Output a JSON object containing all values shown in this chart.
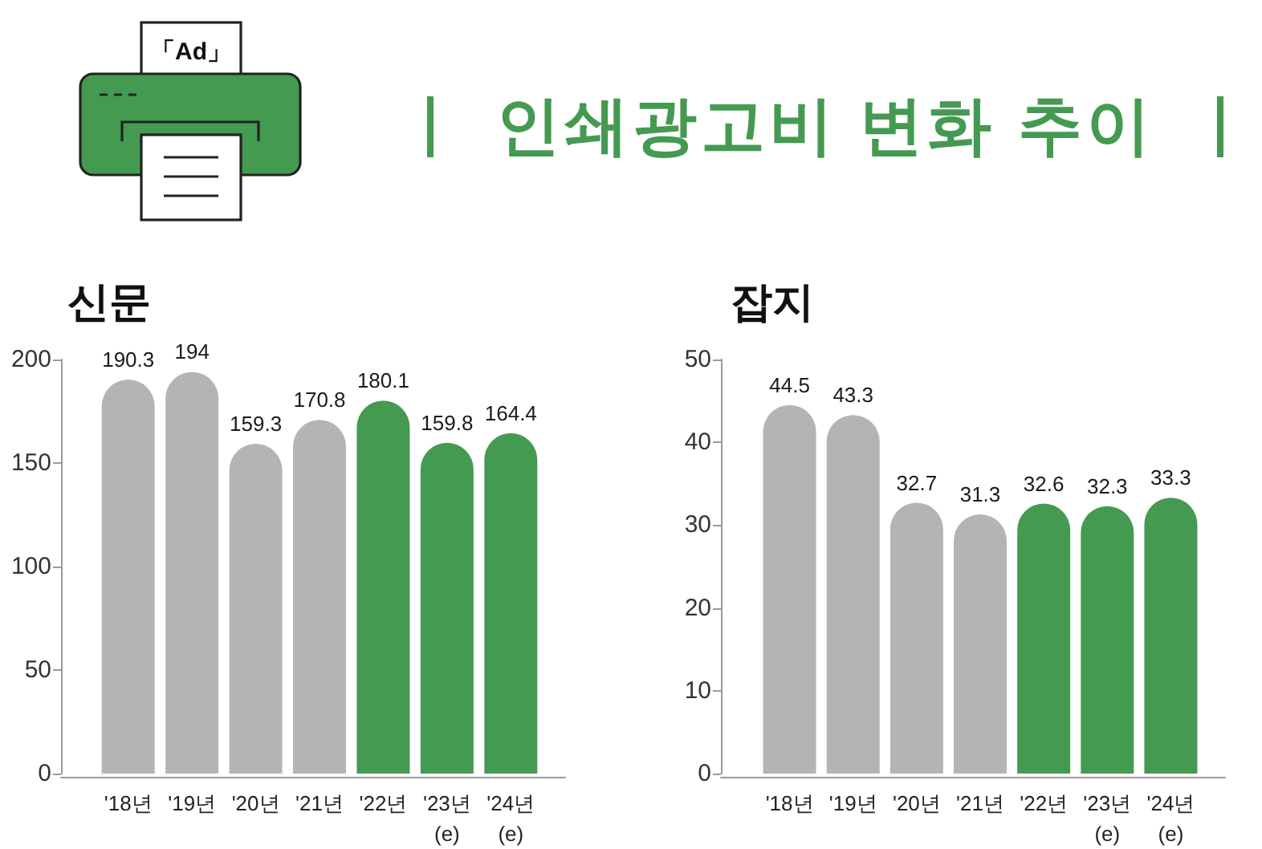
{
  "chart_data": [
    {
      "type": "bar",
      "subtitle": "신문",
      "annotations": [
        "「Ad」"
      ],
      "categories": [
        "'18년",
        "'19년",
        "'20년",
        "'21년",
        "'22년",
        "'23년\n(e)",
        "'24년\n(e)"
      ],
      "values": [
        190.3,
        194,
        159.3,
        170.8,
        180.1,
        159.8,
        164.4
      ],
      "colors": [
        "#b4b4b7",
        "#b4b4b7",
        "#b4b4b7",
        "#b4b4b7",
        "#459a51",
        "#459a51",
        "#459a51"
      ],
      "ylim": [
        0,
        200
      ],
      "yticks": [
        0,
        50,
        100,
        150,
        200
      ],
      "data_labels": true
    },
    {
      "type": "bar",
      "title": "인쇄광고비 변화 추이",
      "subtitle": "잡지",
      "categories": [
        "'18년",
        "'19년",
        "'20년",
        "'21년",
        "'22년",
        "'23년\n(e)",
        "'24년\n(e)"
      ],
      "values": [
        44.5,
        43.3,
        32.7,
        31.3,
        32.6,
        32.3,
        33.3
      ],
      "colors": [
        "#b4b4b7",
        "#b4b4b7",
        "#b4b4b7",
        "#b4b4b7",
        "#459a51",
        "#459a51",
        "#459a51"
      ],
      "ylim": [
        0,
        50
      ],
      "yticks": [
        0,
        10,
        20,
        30,
        40,
        50
      ],
      "data_labels": true
    }
  ]
}
